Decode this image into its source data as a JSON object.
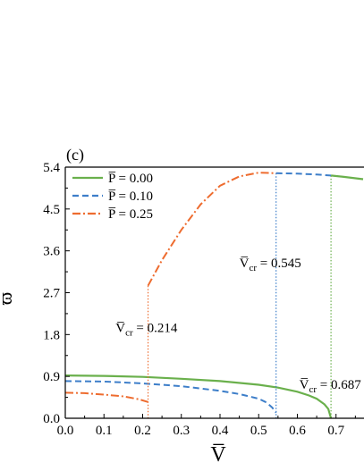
{
  "chart_data": {
    "type": "line",
    "panel_label": "(c)",
    "xlabel": "V̅",
    "ylabel": "ϖ",
    "xlim": [
      0.0,
      0.77
    ],
    "ylim": [
      0.0,
      5.4
    ],
    "x_ticks": [
      "0.0",
      "0.1",
      "0.2",
      "0.3",
      "0.4",
      "0.5",
      "0.6",
      "0.7"
    ],
    "y_ticks": [
      "0.0",
      "0.9",
      "1.8",
      "2.7",
      "3.6",
      "4.5",
      "5.4"
    ],
    "legend_position": "top-left",
    "series": [
      {
        "name": "P̅ = 0.00",
        "color": "#6ab04c",
        "style": "solid",
        "critical_V": 0.687,
        "lower_branch": {
          "x": [
            0.0,
            0.1,
            0.2,
            0.3,
            0.4,
            0.5,
            0.55,
            0.6,
            0.63,
            0.65,
            0.67,
            0.68,
            0.687
          ],
          "y": [
            0.92,
            0.91,
            0.89,
            0.85,
            0.8,
            0.72,
            0.66,
            0.57,
            0.49,
            0.42,
            0.3,
            0.2,
            0.0
          ]
        },
        "upper_branch": {
          "x": [
            0.687,
            0.72,
            0.77
          ],
          "y": [
            5.22,
            5.19,
            5.14
          ]
        }
      },
      {
        "name": "P̅ = 0.10",
        "color": "#3d7ec9",
        "style": "dashed",
        "critical_V": 0.545,
        "lower_branch": {
          "x": [
            0.0,
            0.1,
            0.2,
            0.3,
            0.4,
            0.45,
            0.5,
            0.52,
            0.535,
            0.545
          ],
          "y": [
            0.8,
            0.79,
            0.75,
            0.69,
            0.59,
            0.52,
            0.42,
            0.34,
            0.23,
            0.12
          ]
        },
        "upper_branch": {
          "x": [
            0.545,
            0.6,
            0.65,
            0.687
          ],
          "y": [
            5.27,
            5.26,
            5.24,
            5.22
          ]
        }
      },
      {
        "name": "P̅ = 0.25",
        "color": "#ee6c2f",
        "style": "dashdot",
        "critical_V": 0.214,
        "lower_branch": {
          "x": [
            0.0,
            0.05,
            0.1,
            0.15,
            0.19,
            0.214
          ],
          "y": [
            0.55,
            0.54,
            0.51,
            0.47,
            0.41,
            0.35
          ]
        },
        "upper_branch": {
          "x": [
            0.214,
            0.25,
            0.3,
            0.35,
            0.4,
            0.45,
            0.5,
            0.545
          ],
          "y": [
            2.85,
            3.4,
            4.05,
            4.6,
            5.0,
            5.2,
            5.28,
            5.27
          ]
        }
      }
    ],
    "annotations": [
      {
        "series": 2,
        "label": "V̅",
        "sub": "cr",
        "value": "0.214",
        "x": 0.13,
        "y": 1.85
      },
      {
        "series": 1,
        "label": "V̅",
        "sub": "cr",
        "value": "0.545",
        "x": 0.45,
        "y": 3.25
      },
      {
        "series": 0,
        "label": "V̅",
        "sub": "cr",
        "value": "0.687",
        "x": 0.605,
        "y": 0.63
      }
    ]
  }
}
